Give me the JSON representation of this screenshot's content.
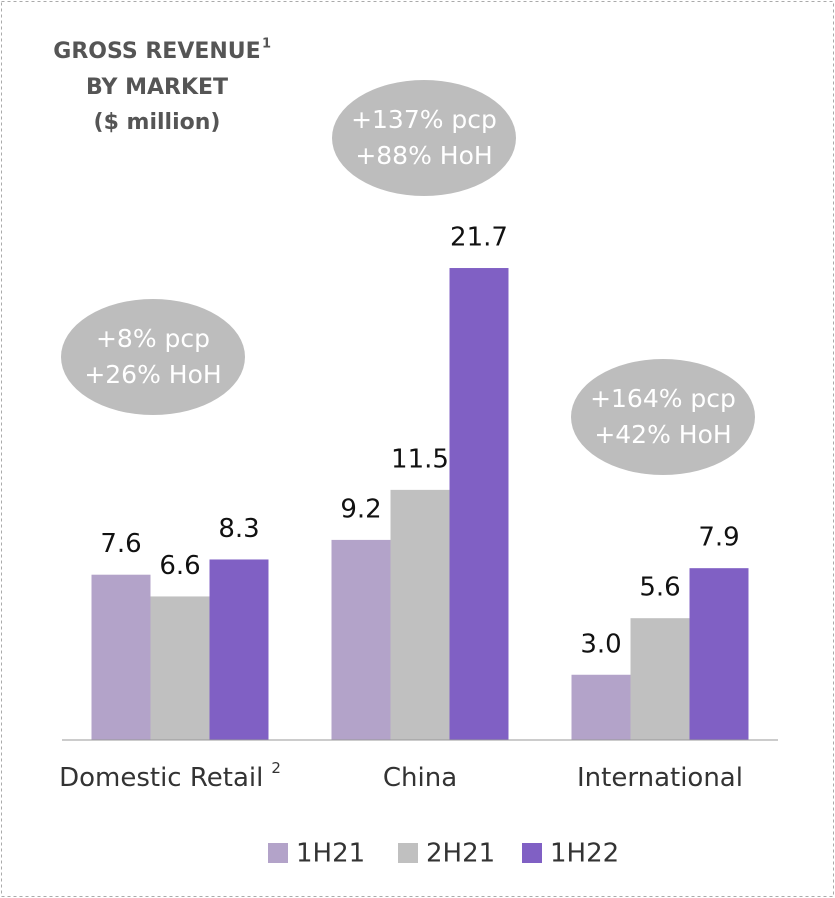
{
  "chart_data": {
    "type": "bar",
    "title": [
      "GROSS REVENUE",
      "BY MARKET",
      "($ million)"
    ],
    "title_footnote": "1",
    "categories": [
      "Domestic Retail",
      "China",
      "International"
    ],
    "category_footnotes": [
      "2",
      null,
      null
    ],
    "series": [
      {
        "name": "1H21",
        "color": "#b3a3c9",
        "values": [
          7.6,
          9.2,
          3.0
        ],
        "value_labels": [
          "7.6",
          "9.2",
          "3.0"
        ]
      },
      {
        "name": "2H21",
        "color": "#c0c0c0",
        "values": [
          6.6,
          11.5,
          5.6
        ],
        "value_labels": [
          "6.6",
          "11.5",
          "5.6"
        ]
      },
      {
        "name": "1H22",
        "color": "#8060c4",
        "values": [
          8.3,
          21.7,
          7.9
        ],
        "value_labels": [
          "8.3",
          "21.7",
          "7.9"
        ]
      }
    ],
    "ylim": [
      0,
      25
    ],
    "legend": "bottom",
    "annotations": [
      {
        "category": 0,
        "lines": [
          "+8% pcp",
          "+26% HoH"
        ]
      },
      {
        "category": 1,
        "lines": [
          "+137% pcp",
          "+88% HoH"
        ]
      },
      {
        "category": 2,
        "lines": [
          "+164% pcp",
          "+42% HoH"
        ]
      }
    ]
  }
}
